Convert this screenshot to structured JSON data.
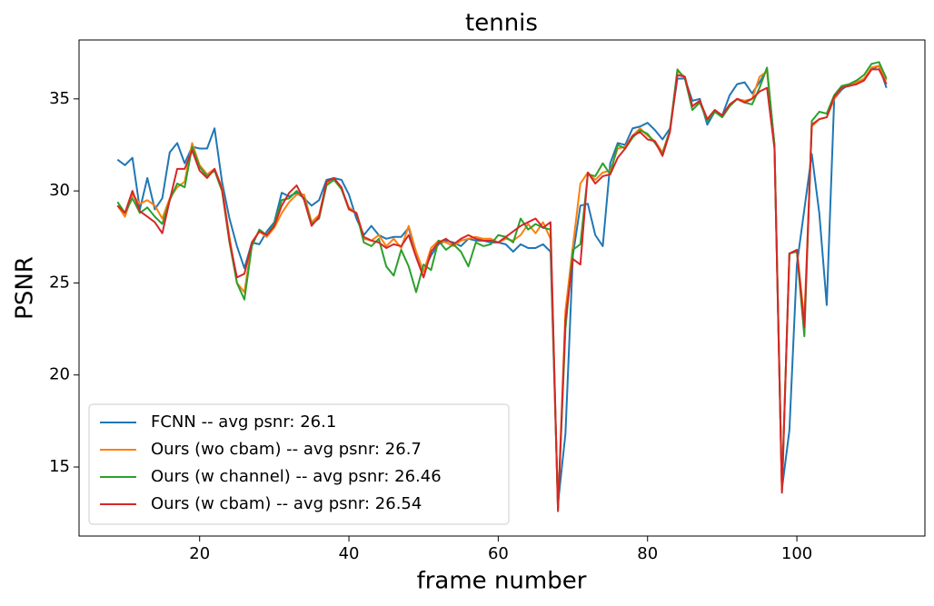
{
  "chart_data": {
    "type": "line",
    "title": "tennis",
    "x_label": "frame number",
    "y_label": "PSNR",
    "x": [
      9,
      10,
      11,
      12,
      13,
      14,
      15,
      16,
      17,
      18,
      19,
      20,
      21,
      22,
      23,
      24,
      25,
      26,
      27,
      28,
      29,
      30,
      31,
      32,
      33,
      34,
      35,
      36,
      37,
      38,
      39,
      40,
      41,
      42,
      43,
      44,
      45,
      46,
      47,
      48,
      49,
      50,
      51,
      52,
      53,
      54,
      55,
      56,
      57,
      58,
      59,
      60,
      61,
      62,
      63,
      64,
      65,
      66,
      67,
      68,
      69,
      70,
      71,
      72,
      73,
      74,
      75,
      76,
      77,
      78,
      79,
      80,
      81,
      82,
      83,
      84,
      85,
      86,
      87,
      88,
      89,
      90,
      91,
      92,
      93,
      94,
      95,
      96,
      97,
      98,
      99,
      100,
      101,
      102,
      103,
      104,
      105,
      106,
      107,
      108,
      109,
      110,
      111,
      112
    ],
    "series": [
      {
        "name": "FCNN -- avg psnr: 26.1",
        "color": "#1f77b4",
        "values": [
          31.7,
          31.4,
          31.8,
          29.0,
          30.7,
          29.0,
          29.6,
          32.1,
          32.6,
          31.5,
          32.4,
          32.3,
          32.3,
          33.4,
          30.5,
          28.5,
          27.0,
          25.8,
          27.2,
          27.1,
          27.8,
          28.3,
          29.9,
          29.7,
          29.9,
          29.6,
          29.2,
          29.5,
          30.6,
          30.7,
          30.6,
          29.8,
          28.5,
          27.6,
          28.1,
          27.6,
          27.4,
          27.5,
          27.5,
          28.0,
          26.5,
          25.6,
          26.5,
          27.1,
          27.3,
          27.2,
          27.0,
          27.4,
          27.3,
          27.3,
          27.2,
          27.2,
          27.1,
          26.7,
          27.1,
          26.9,
          26.9,
          27.1,
          26.7,
          13.0,
          16.8,
          26.5,
          29.2,
          29.3,
          27.6,
          27.0,
          31.5,
          32.6,
          32.5,
          33.4,
          33.5,
          33.7,
          33.3,
          32.8,
          33.4,
          36.1,
          36.1,
          34.9,
          35.0,
          33.6,
          34.3,
          34.1,
          35.2,
          35.8,
          35.9,
          35.3,
          35.9,
          36.6,
          32.5,
          13.8,
          17.0,
          26.0,
          29.0,
          32.0,
          28.8,
          23.8,
          35.0,
          35.5,
          35.8,
          35.8,
          36.1,
          36.6,
          36.8,
          35.6
        ]
      },
      {
        "name": "Ours (wo cbam) -- avg psnr: 26.7",
        "color": "#ff7f0e",
        "values": [
          29.2,
          28.6,
          29.8,
          29.3,
          29.5,
          29.2,
          28.5,
          29.6,
          30.2,
          30.5,
          32.6,
          31.4,
          30.9,
          31.2,
          30.2,
          27.5,
          25.0,
          24.5,
          27.2,
          27.8,
          27.5,
          28.0,
          28.8,
          29.4,
          29.8,
          29.8,
          28.3,
          28.7,
          30.4,
          30.7,
          30.1,
          29.1,
          28.8,
          27.4,
          27.3,
          27.6,
          27.0,
          27.4,
          26.9,
          28.1,
          26.7,
          25.6,
          26.9,
          27.3,
          27.2,
          27.0,
          27.3,
          27.4,
          27.5,
          27.4,
          27.4,
          27.2,
          27.4,
          27.3,
          27.6,
          28.2,
          27.7,
          28.3,
          27.4,
          12.7,
          23.5,
          27.0,
          30.4,
          31.0,
          30.6,
          31.0,
          31.1,
          32.3,
          32.4,
          33.0,
          33.4,
          33.0,
          32.7,
          32.1,
          33.3,
          36.5,
          36.2,
          34.6,
          34.9,
          33.9,
          34.3,
          34.1,
          34.6,
          35.0,
          34.9,
          35.0,
          36.2,
          36.5,
          32.5,
          13.8,
          26.6,
          26.8,
          23.0,
          33.5,
          33.9,
          34.0,
          35.0,
          35.6,
          35.8,
          35.9,
          36.1,
          36.7,
          36.8,
          36.0
        ]
      },
      {
        "name": "Ours (w channel) -- avg psnr: 26.46",
        "color": "#2ca02c",
        "values": [
          29.4,
          28.8,
          29.6,
          28.8,
          29.1,
          28.6,
          28.2,
          29.5,
          30.4,
          30.2,
          32.4,
          31.3,
          30.8,
          31.1,
          30.0,
          27.2,
          25.0,
          24.1,
          27.0,
          27.9,
          27.6,
          28.2,
          29.5,
          29.6,
          30.0,
          29.6,
          28.2,
          28.5,
          30.3,
          30.6,
          30.1,
          29.0,
          28.8,
          27.2,
          27.0,
          27.4,
          25.9,
          25.4,
          26.8,
          25.9,
          24.5,
          26.0,
          25.7,
          27.3,
          26.8,
          27.1,
          26.7,
          25.9,
          27.2,
          27.0,
          27.1,
          27.6,
          27.5,
          27.2,
          28.5,
          27.9,
          28.2,
          28.0,
          27.9,
          12.7,
          22.5,
          26.8,
          27.1,
          30.9,
          30.8,
          31.5,
          30.9,
          32.5,
          32.3,
          32.9,
          33.3,
          33.1,
          32.6,
          32.0,
          33.3,
          36.6,
          36.1,
          34.4,
          34.8,
          33.8,
          34.3,
          34.0,
          34.6,
          35.0,
          34.8,
          34.7,
          35.6,
          36.7,
          32.5,
          13.7,
          26.6,
          26.7,
          22.1,
          33.8,
          34.3,
          34.2,
          35.2,
          35.7,
          35.8,
          36.0,
          36.3,
          36.9,
          37.0,
          36.1
        ]
      },
      {
        "name": "Ours (w cbam) -- avg psnr: 26.54",
        "color": "#d62728",
        "values": [
          29.2,
          28.8,
          30.0,
          28.9,
          28.6,
          28.3,
          27.7,
          29.5,
          31.2,
          31.2,
          32.2,
          31.1,
          30.7,
          31.2,
          30.1,
          27.3,
          25.3,
          25.5,
          27.2,
          27.8,
          27.6,
          28.1,
          29.2,
          29.9,
          30.3,
          29.5,
          28.1,
          28.6,
          30.5,
          30.7,
          30.2,
          29.0,
          28.8,
          27.5,
          27.3,
          27.2,
          26.9,
          27.1,
          27.0,
          27.6,
          26.4,
          25.3,
          26.7,
          27.2,
          27.4,
          27.1,
          27.4,
          27.6,
          27.4,
          27.3,
          27.3,
          27.2,
          27.5,
          27.8,
          28.1,
          28.3,
          28.5,
          28.0,
          28.3,
          12.6,
          23.0,
          26.3,
          26.0,
          31.0,
          30.4,
          30.8,
          30.9,
          31.8,
          32.3,
          33.0,
          33.2,
          32.8,
          32.7,
          31.9,
          33.2,
          36.3,
          36.2,
          34.6,
          34.9,
          33.9,
          34.4,
          34.1,
          34.7,
          35.0,
          34.8,
          35.0,
          35.4,
          35.6,
          32.3,
          13.6,
          26.6,
          26.8,
          22.6,
          33.6,
          33.9,
          34.0,
          35.1,
          35.6,
          35.7,
          35.8,
          36.0,
          36.6,
          36.6,
          35.8
        ]
      }
    ],
    "xlim": [
      3.85,
      117.15
    ],
    "ylim": [
      11.25,
      38.2
    ],
    "xticks": [
      20,
      40,
      60,
      80,
      100
    ],
    "yticks": [
      15,
      20,
      25,
      30,
      35
    ],
    "grid": false,
    "legend": "lower left"
  }
}
